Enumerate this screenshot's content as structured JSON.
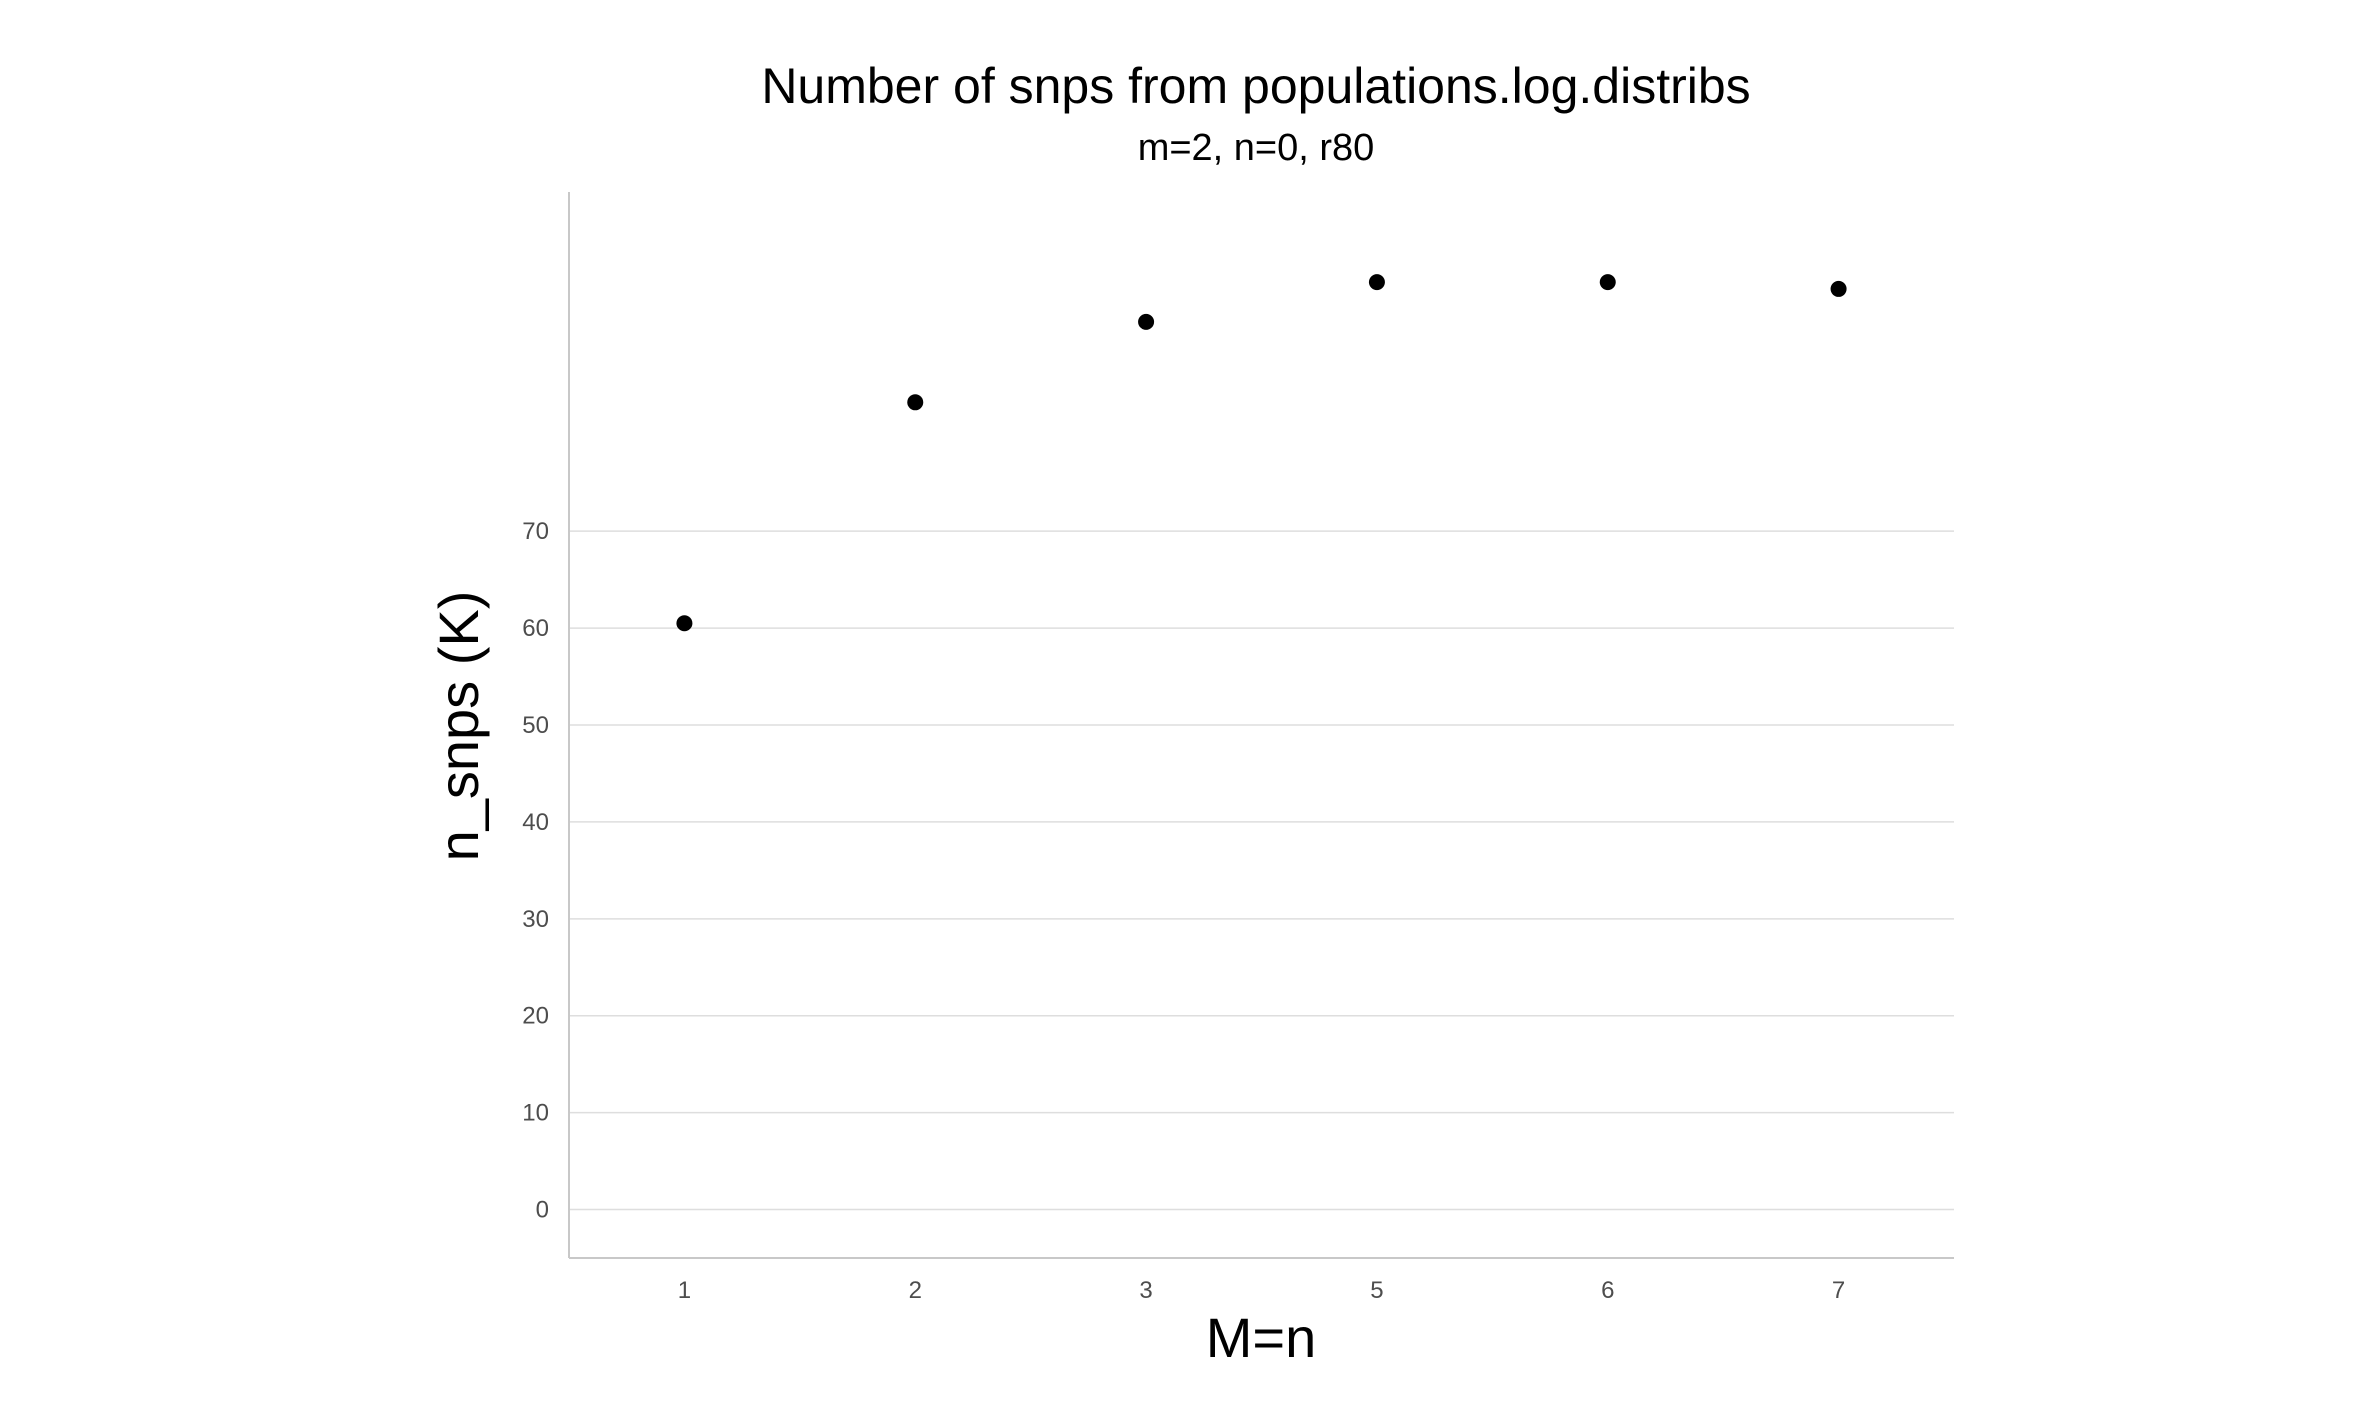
{
  "chart_data": {
    "type": "scatter",
    "title": "Number of snps from populations.log.distribs",
    "subtitle": "m=2, n=0, r80",
    "xlabel": "M=n",
    "ylabel": "n_snps (K)",
    "categories": [
      "1",
      "2",
      "3",
      "5",
      "6",
      "7"
    ],
    "values": [
      60.5,
      83.3,
      91.6,
      95.7,
      95.7,
      95.0
    ],
    "yticks": [
      0,
      10,
      20,
      30,
      40,
      50,
      60,
      70
    ],
    "ylim": [
      -5,
      105
    ],
    "grid": true,
    "legend": "none",
    "colors": {
      "point": "#000000",
      "grid": "#dedede",
      "axis": "#c8c8c8",
      "tick_text": "#4d4d4d",
      "title_text": "#000000"
    }
  }
}
